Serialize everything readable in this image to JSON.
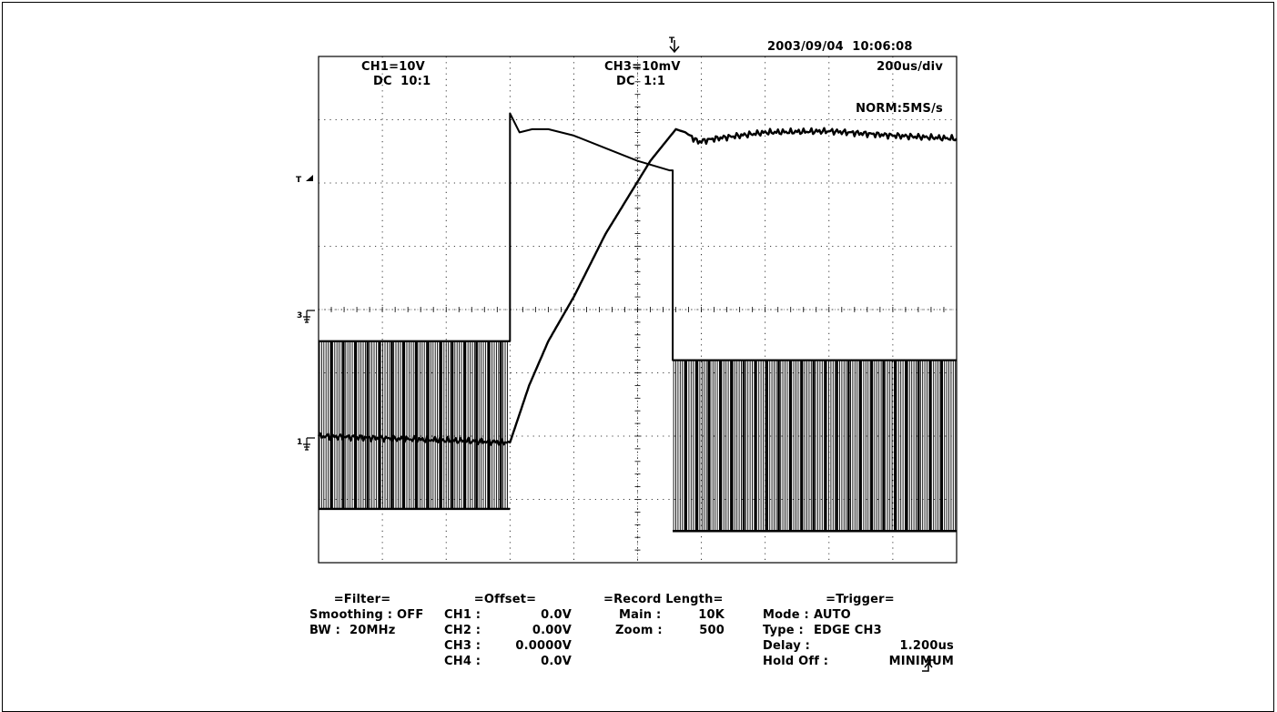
{
  "header": {
    "datetime": "2003/09/04  10:06:08",
    "ch1_scale": "CH1=10V",
    "ch1_coupling": "DC  10:1",
    "ch3_scale": "CH3=10mV",
    "ch3_coupling": "DC  1:1",
    "timebase": "200us/div",
    "acquisition": "NORM:5MS/s"
  },
  "markers": {
    "trigger_position": "T",
    "trigger_level": "T",
    "ch3_ground": "3",
    "ch1_ground": "1"
  },
  "chart_data": {
    "type": "line",
    "title": "",
    "xlabel": "",
    "ylabel": "",
    "x_unit": "div",
    "y_unit": "div",
    "xlim": [
      0,
      10
    ],
    "ylim": [
      -4,
      4
    ],
    "grid": true,
    "divisions": {
      "x": 10,
      "y": 8
    },
    "series": [
      {
        "name": "CH3",
        "points": [
          [
            0,
            -2
          ],
          [
            3,
            -2.1
          ],
          [
            3.05,
            -1.95
          ],
          [
            3.3,
            -1.2
          ],
          [
            3.6,
            -0.5
          ],
          [
            4.0,
            0.2
          ],
          [
            4.5,
            1.2
          ],
          [
            5.2,
            2.35
          ],
          [
            5.6,
            2.85
          ],
          [
            5.75,
            2.8
          ],
          [
            5.95,
            2.65
          ],
          [
            6.2,
            2.7
          ],
          [
            7.0,
            2.8
          ],
          [
            8.0,
            2.82
          ],
          [
            9.0,
            2.75
          ],
          [
            10,
            2.7
          ]
        ]
      },
      {
        "name": "CH1",
        "high": [
          [
            0,
            -0.5
          ],
          [
            3,
            -0.5
          ],
          [
            3,
            3.1
          ],
          [
            3.05,
            3.0
          ],
          [
            3.15,
            2.8
          ],
          [
            3.35,
            2.85
          ],
          [
            3.6,
            2.85
          ],
          [
            4.0,
            2.75
          ],
          [
            4.5,
            2.55
          ],
          [
            5.0,
            2.35
          ],
          [
            5.5,
            2.2
          ],
          [
            5.55,
            2.2
          ],
          [
            5.55,
            -0.8
          ],
          [
            10,
            -0.8
          ]
        ],
        "low_segments": [
          {
            "from": 0,
            "to": 3,
            "level": -3.15
          },
          {
            "from": 5.55,
            "to": 10,
            "level": -3.5
          }
        ],
        "switching_ranges": [
          {
            "from": 0,
            "to": 3,
            "top": -0.5,
            "bottom": -3.15
          },
          {
            "from": 5.55,
            "to": 10,
            "top": -0.8,
            "bottom": -3.5
          }
        ]
      }
    ]
  },
  "settings": {
    "filter": {
      "header": "=Filter=",
      "smoothing_label": "Smoothing :",
      "smoothing_value": "OFF",
      "bw_label": "BW :",
      "bw_value": "20MHz"
    },
    "offset": {
      "header": "=Offset=",
      "rows": [
        {
          "label": "CH1 :",
          "value": "0.0V"
        },
        {
          "label": "CH2 :",
          "value": "0.00V"
        },
        {
          "label": "CH3 :",
          "value": "0.0000V"
        },
        {
          "label": "CH4 :",
          "value": "0.0V"
        }
      ]
    },
    "record_length": {
      "header": "=Record Length=",
      "main_label": "Main :",
      "main_value": "10K",
      "zoom_label": "Zoom :",
      "zoom_value": "500"
    },
    "trigger": {
      "header": "=Trigger=",
      "mode_label": "Mode :",
      "mode_value": "AUTO",
      "type_label": "Type :",
      "type_value": "EDGE CH3",
      "delay_label": "Delay :",
      "delay_value": "1.200us",
      "holdoff_label": "Hold Off :",
      "holdoff_value": "MINIMUM"
    }
  }
}
